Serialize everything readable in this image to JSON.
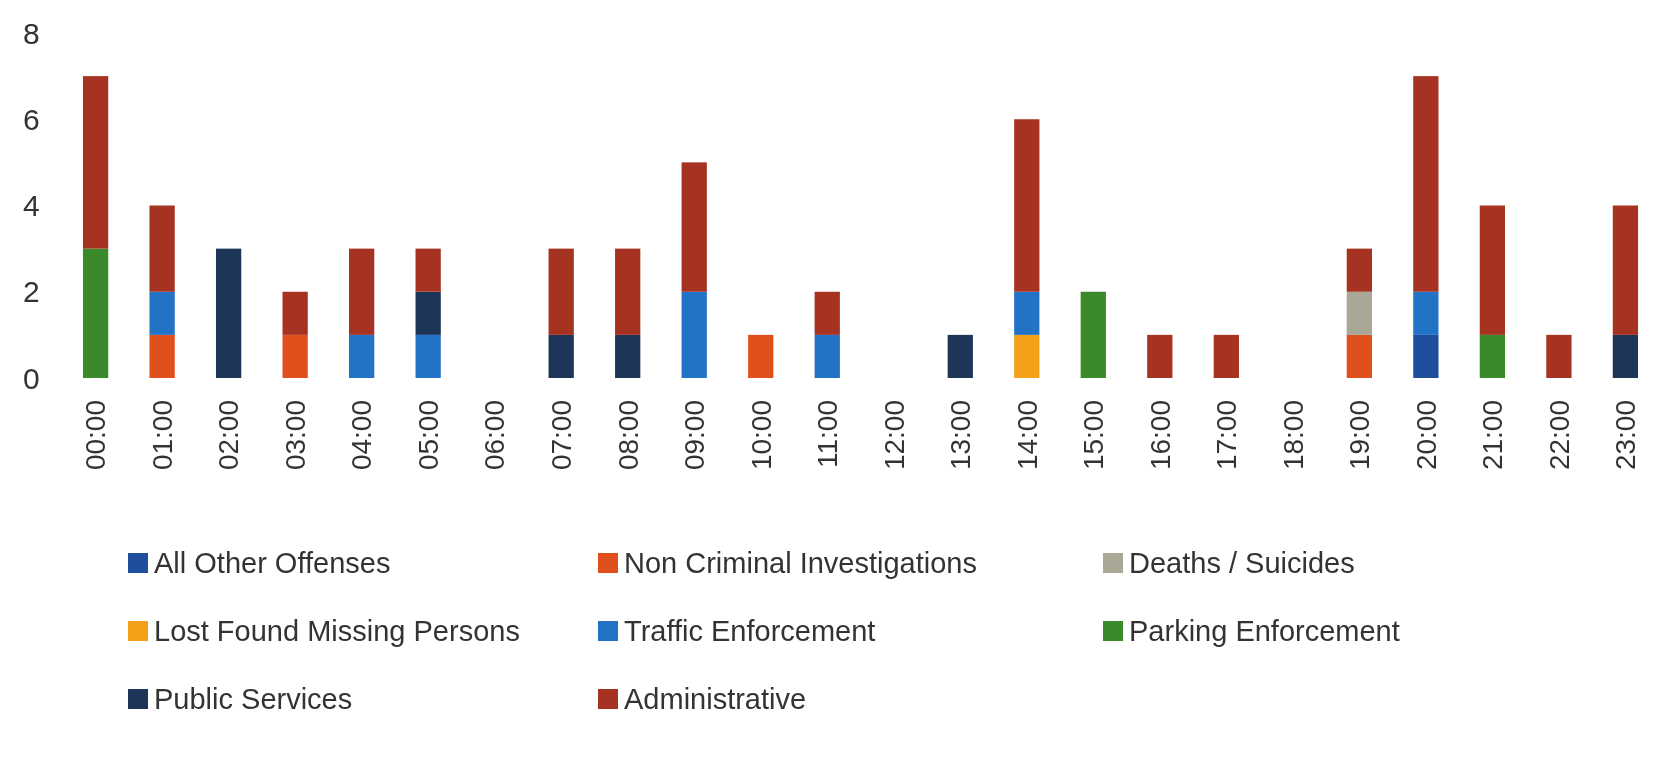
{
  "chart_data": {
    "type": "bar",
    "stacked": true,
    "categories": [
      "00:00",
      "01:00",
      "02:00",
      "03:00",
      "04:00",
      "05:00",
      "06:00",
      "07:00",
      "08:00",
      "09:00",
      "10:00",
      "11:00",
      "12:00",
      "13:00",
      "14:00",
      "15:00",
      "16:00",
      "17:00",
      "18:00",
      "19:00",
      "20:00",
      "21:00",
      "22:00",
      "23:00"
    ],
    "series": [
      {
        "name": "All Other Offenses",
        "color": "#1f4e9c",
        "values": [
          0,
          0,
          0,
          0,
          0,
          0,
          0,
          0,
          0,
          0,
          0,
          0,
          0,
          0,
          0,
          0,
          0,
          0,
          0,
          0,
          1,
          0,
          0,
          0
        ]
      },
      {
        "name": "Non Criminal Investigations",
        "color": "#e0501c",
        "values": [
          0,
          1,
          0,
          1,
          0,
          0,
          0,
          0,
          0,
          0,
          1,
          0,
          0,
          0,
          0,
          0,
          0,
          0,
          0,
          1,
          0,
          0,
          0,
          0
        ]
      },
      {
        "name": "Deaths / Suicides",
        "color": "#a9a796",
        "values": [
          0,
          0,
          0,
          0,
          0,
          0,
          0,
          0,
          0,
          0,
          0,
          0,
          0,
          0,
          0,
          0,
          0,
          0,
          0,
          1,
          0,
          0,
          0,
          0
        ]
      },
      {
        "name": "Lost Found Missing Persons",
        "color": "#f4a019",
        "values": [
          0,
          0,
          0,
          0,
          0,
          0,
          0,
          0,
          0,
          0,
          0,
          0,
          0,
          0,
          1,
          0,
          0,
          0,
          0,
          0,
          0,
          0,
          0,
          0
        ]
      },
      {
        "name": "Traffic Enforcement",
        "color": "#2272c6",
        "values": [
          0,
          1,
          0,
          0,
          1,
          1,
          0,
          0,
          0,
          2,
          0,
          1,
          0,
          0,
          1,
          0,
          0,
          0,
          0,
          0,
          1,
          0,
          0,
          0
        ]
      },
      {
        "name": "Parking Enforcement",
        "color": "#3a8a2c",
        "values": [
          3,
          0,
          0,
          0,
          0,
          0,
          0,
          0,
          0,
          0,
          0,
          0,
          0,
          0,
          0,
          2,
          0,
          0,
          0,
          0,
          0,
          1,
          0,
          0
        ]
      },
      {
        "name": "Public Services",
        "color": "#1d3557",
        "values": [
          0,
          0,
          3,
          0,
          0,
          1,
          0,
          1,
          1,
          0,
          0,
          0,
          0,
          1,
          0,
          0,
          0,
          0,
          0,
          0,
          0,
          0,
          0,
          1
        ]
      },
      {
        "name": "Administrative",
        "color": "#a63222",
        "values": [
          4,
          2,
          0,
          1,
          2,
          1,
          0,
          2,
          2,
          3,
          0,
          1,
          0,
          0,
          4,
          0,
          1,
          1,
          0,
          1,
          5,
          3,
          1,
          3
        ]
      }
    ],
    "ylim": [
      0,
      8
    ],
    "yticks": [
      0,
      2,
      4,
      6,
      8
    ],
    "grid": false,
    "legend": "bottom"
  }
}
